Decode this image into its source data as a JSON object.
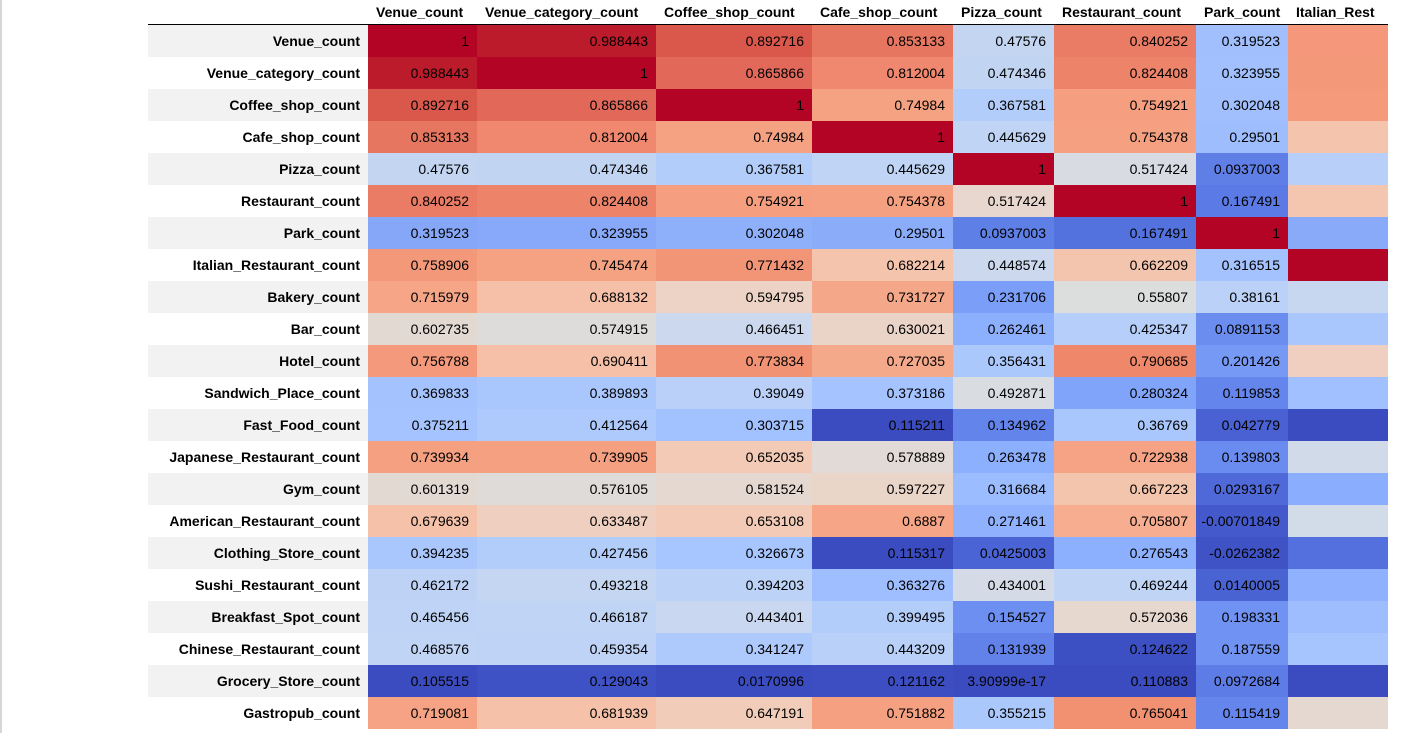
{
  "columns": [
    "Venue_count",
    "Venue_category_count",
    "Coffee_shop_count",
    "Cafe_shop_count",
    "Pizza_count",
    "Restaurant_count",
    "Park_count",
    "Italian_Rest"
  ],
  "rows": [
    {
      "label": "Venue_count",
      "values": [
        "1",
        "0.988443",
        "0.892716",
        "0.853133",
        "0.47576",
        "0.840252",
        "0.319523",
        ""
      ],
      "colors": [
        "#b40426",
        "#bc1b2b",
        "#d9574b",
        "#e67660",
        "#c3d5f1",
        "#ea7b64",
        "#a0bffc",
        "#f4977a"
      ]
    },
    {
      "label": "Venue_category_count",
      "values": [
        "0.988443",
        "1",
        "0.865866",
        "0.812004",
        "0.474346",
        "0.824408",
        "0.323955",
        ""
      ],
      "colors": [
        "#bc1b2b",
        "#b40426",
        "#e2685a",
        "#ef886e",
        "#c1d4f1",
        "#ed8369",
        "#a2c0fd",
        "#f4987a"
      ]
    },
    {
      "label": "Coffee_shop_count",
      "values": [
        "0.892716",
        "0.865866",
        "1",
        "0.74984",
        "0.367581",
        "0.754921",
        "0.302048",
        ""
      ],
      "colors": [
        "#d9574b",
        "#e2685a",
        "#b40426",
        "#f5a283",
        "#b3cdfa",
        "#f59e80",
        "#a0bffc",
        "#f59b7c"
      ]
    },
    {
      "label": "Cafe_shop_count",
      "values": [
        "0.853133",
        "0.812004",
        "0.74984",
        "1",
        "0.445629",
        "0.754378",
        "0.29501",
        ""
      ],
      "colors": [
        "#e67660",
        "#ef886e",
        "#f5a283",
        "#b40426",
        "#c0d4f5",
        "#f5a081",
        "#9ebdfc",
        "#f5c4ad"
      ]
    },
    {
      "label": "Pizza_count",
      "values": [
        "0.47576",
        "0.474346",
        "0.367581",
        "0.445629",
        "1",
        "0.517424",
        "0.0937003",
        ""
      ],
      "colors": [
        "#c3d5f1",
        "#c1d4f1",
        "#b3cdfa",
        "#c0d4f5",
        "#b40426",
        "#d8dce2",
        "#5f7fe7",
        "#b7cff9"
      ]
    },
    {
      "label": "Restaurant_count",
      "values": [
        "0.840252",
        "0.824408",
        "0.754921",
        "0.754378",
        "0.517424",
        "1",
        "0.167491",
        ""
      ],
      "colors": [
        "#ea7b64",
        "#ed8369",
        "#f59e80",
        "#f5a081",
        "#e7d7ce",
        "#b40426",
        "#5b7ae5",
        "#f5c6af"
      ]
    },
    {
      "label": "Park_count",
      "values": [
        "0.319523",
        "0.323955",
        "0.302048",
        "0.29501",
        "0.0937003",
        "0.167491",
        "1",
        ""
      ],
      "colors": [
        "#86a7f8",
        "#88a9f9",
        "#8eaff9",
        "#8aacf9",
        "#5e7fe6",
        "#5372de",
        "#b40426",
        "#89a9f9"
      ]
    },
    {
      "label": "Italian_Restaurant_count",
      "values": [
        "0.758906",
        "0.745474",
        "0.771432",
        "0.682214",
        "0.448574",
        "0.662209",
        "0.316515",
        ""
      ],
      "colors": [
        "#f4987a",
        "#f4a282",
        "#f29577",
        "#f5c4ad",
        "#cbd8ee",
        "#f4c5ae",
        "#a4c2fe",
        "#b40426"
      ]
    },
    {
      "label": "Bakery_count",
      "values": [
        "0.715979",
        "0.688132",
        "0.594795",
        "0.731727",
        "0.231706",
        "0.55807",
        "0.38161",
        ""
      ],
      "colors": [
        "#f6a687",
        "#f5c0a7",
        "#ecd3c5",
        "#f5a889",
        "#7b9ff9",
        "#dcdddd",
        "#bbd1f8",
        "#c7d7f0"
      ]
    },
    {
      "label": "Bar_count",
      "values": [
        "0.602735",
        "0.574915",
        "0.466451",
        "0.630021",
        "0.262461",
        "0.425347",
        "0.0891153",
        ""
      ],
      "colors": [
        "#e3d9d3",
        "#dedcdb",
        "#cbd8ee",
        "#ead4c8",
        "#8caffe",
        "#b6cefa",
        "#6b8df0",
        "#a9c6fd"
      ]
    },
    {
      "label": "Hotel_count",
      "values": [
        "0.756788",
        "0.690411",
        "0.773834",
        "0.727035",
        "0.356431",
        "0.790685",
        "0.201426",
        ""
      ],
      "colors": [
        "#f4997b",
        "#f5c0a7",
        "#f29274",
        "#f5a98b",
        "#abc8fd",
        "#ef886b",
        "#7699f6",
        "#f0cfc0"
      ]
    },
    {
      "label": "Sandwich_Place_count",
      "values": [
        "0.369833",
        "0.389893",
        "0.39049",
        "0.373186",
        "0.492871",
        "0.280324",
        "0.119853",
        ""
      ],
      "colors": [
        "#a3c2fe",
        "#a9c6fd",
        "#bad0f8",
        "#a5c3fe",
        "#d9dce1",
        "#81a4fb",
        "#6485ec",
        "#a1c0ff"
      ]
    },
    {
      "label": "Fast_Food_count",
      "values": [
        "0.375211",
        "0.412564",
        "0.303715",
        "0.115211",
        "0.134962",
        "0.36769",
        "0.042779",
        ""
      ],
      "colors": [
        "#a5c3fe",
        "#aec9fc",
        "#a2c1ff",
        "#3b4cc0",
        "#6384eb",
        "#aac7fd",
        "#4961d2",
        "#3b4cc0"
      ]
    },
    {
      "label": "Japanese_Restaurant_count",
      "values": [
        "0.739934",
        "0.739905",
        "0.652035",
        "0.578889",
        "0.263478",
        "0.722938",
        "0.139803",
        ""
      ],
      "colors": [
        "#f5a081",
        "#f5a081",
        "#f2cab5",
        "#e1dad6",
        "#8db0fe",
        "#f6a385",
        "#6a8bef",
        "#d1dae9"
      ]
    },
    {
      "label": "Gym_count",
      "values": [
        "0.601319",
        "0.576105",
        "0.581524",
        "0.597227",
        "0.316684",
        "0.667223",
        "0.0293167",
        ""
      ],
      "colors": [
        "#e3d9d3",
        "#dfdbd9",
        "#e5d8d1",
        "#ead5c9",
        "#9bbcff",
        "#f4c5ad",
        "#4f69d9",
        "#8badfd"
      ]
    },
    {
      "label": "American_Restaurant_count",
      "values": [
        "0.679639",
        "0.633487",
        "0.653108",
        "0.6887",
        "0.271461",
        "0.705807",
        "-0.00701849",
        ""
      ],
      "colors": [
        "#f5c1a9",
        "#efcfbf",
        "#f2cab5",
        "#f6a586",
        "#8fb1fe",
        "#f7ad90",
        "#445acc",
        "#d2dbe8"
      ]
    },
    {
      "label": "Clothing_Store_count",
      "values": [
        "0.394235",
        "0.427456",
        "0.326673",
        "0.115317",
        "0.0425003",
        "0.276543",
        "-0.0262382",
        ""
      ],
      "colors": [
        "#aac7fd",
        "#b3cdfb",
        "#a7c5fe",
        "#3b4cc0",
        "#4b64d5",
        "#8caffe",
        "#3f53c6",
        "#5470de"
      ]
    },
    {
      "label": "Sushi_Restaurant_count",
      "values": [
        "0.462172",
        "0.493218",
        "0.394203",
        "0.363276",
        "0.434001",
        "0.469244",
        "0.0140005",
        ""
      ],
      "colors": [
        "#bed2f6",
        "#c5d6f2",
        "#bcd2f7",
        "#9ebeff",
        "#d4dbe6",
        "#c0d4f5",
        "#4a63d3",
        "#8fb1fe"
      ]
    },
    {
      "label": "Breakfast_Spot_count",
      "values": [
        "0.465456",
        "0.466187",
        "0.443401",
        "0.399495",
        "0.154527",
        "0.572036",
        "0.198331",
        ""
      ],
      "colors": [
        "#bfd3f6",
        "#c0d4f5",
        "#c9d7f0",
        "#b3cdfb",
        "#6c8ff1",
        "#e6d7cf",
        "#6f92f3",
        "#9dbdff"
      ]
    },
    {
      "label": "Chinese_Restaurant_count",
      "values": [
        "0.468576",
        "0.459354",
        "0.341247",
        "0.443209",
        "0.131939",
        "0.124622",
        "0.187559",
        ""
      ],
      "colors": [
        "#c0d4f5",
        "#bfd3f6",
        "#aec9fc",
        "#b9d0f9",
        "#6282ea",
        "#3d50c3",
        "#7093f3",
        "#a6c4fe"
      ]
    },
    {
      "label": "Grocery_Store_count",
      "values": [
        "0.105515",
        "0.129043",
        "0.0170996",
        "0.121162",
        "3.90999e-17",
        "0.110883",
        "0.0972684",
        ""
      ],
      "colors": [
        "#3b4cc0",
        "#3e51c5",
        "#3b4cc0",
        "#3c4ec2",
        "#3b4cc0",
        "#3b4cc0",
        "#5d7ce6",
        "#3b4cc0"
      ]
    },
    {
      "label": "Gastropub_count",
      "values": [
        "0.719081",
        "0.681939",
        "0.647191",
        "0.751882",
        "0.355215",
        "0.765041",
        "0.115419",
        ""
      ],
      "colors": [
        "#f6a385",
        "#f5c1a9",
        "#f1ccb8",
        "#f5a081",
        "#abc8fd",
        "#f29072",
        "#6485ec",
        "#e5d8d1"
      ]
    }
  ]
}
